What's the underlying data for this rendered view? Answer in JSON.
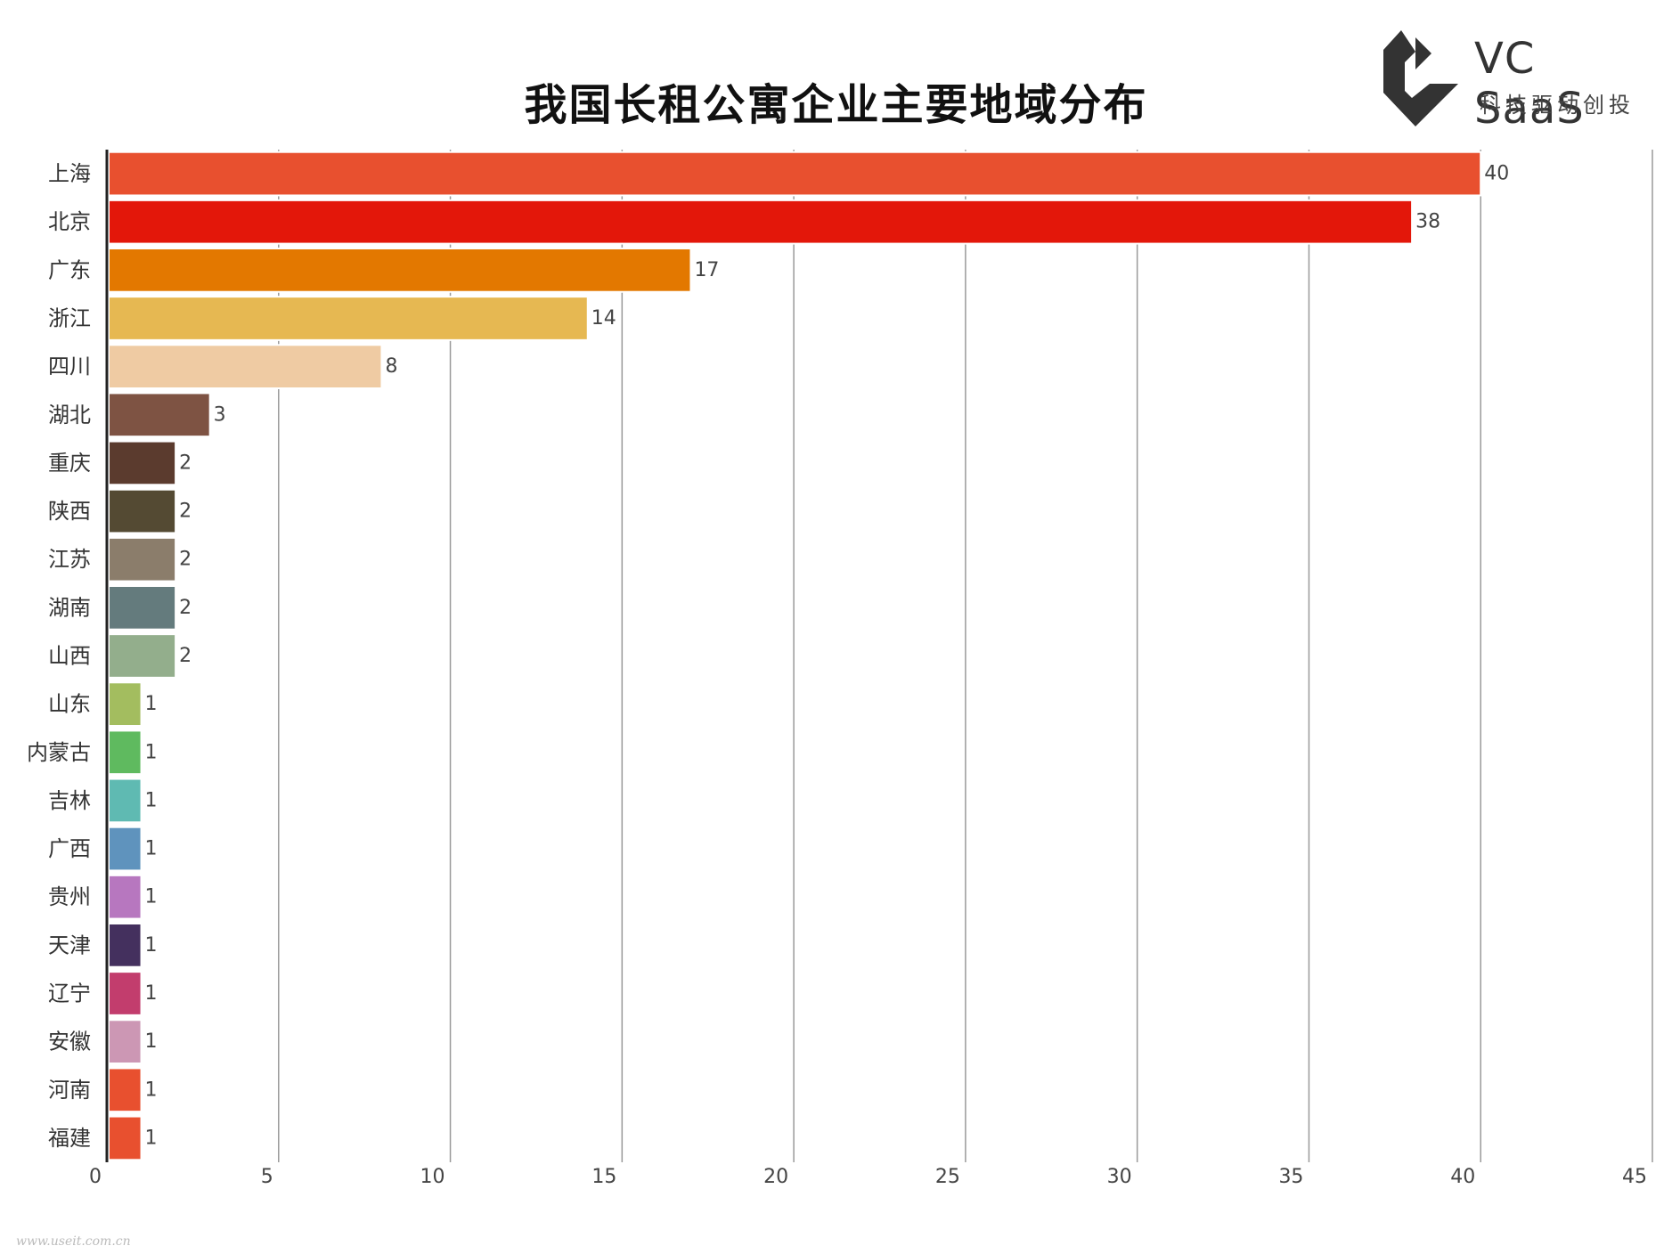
{
  "chart_data": {
    "type": "bar",
    "orientation": "horizontal",
    "title": "我国长租公寓企业主要地域分布",
    "categories": [
      "上海",
      "北京",
      "广东",
      "浙江",
      "四川",
      "湖北",
      "重庆",
      "陕西",
      "江苏",
      "湖南",
      "山西",
      "山东",
      "内蒙古",
      "吉林",
      "广西",
      "贵州",
      "天津",
      "辽宁",
      "安徽",
      "河南",
      "福建"
    ],
    "values": [
      40,
      38,
      17,
      14,
      8,
      3,
      2,
      2,
      2,
      2,
      2,
      1,
      1,
      1,
      1,
      1,
      1,
      1,
      1,
      1,
      1
    ],
    "colors": [
      "#e8502f",
      "#e3170a",
      "#e37800",
      "#e6b852",
      "#efcba3",
      "#7e5343",
      "#5b3b2e",
      "#544a33",
      "#8b7d6b",
      "#647b7d",
      "#93ae8c",
      "#a3bd5f",
      "#5fba5f",
      "#5fbab2",
      "#5f93bd",
      "#b777bf",
      "#44305e",
      "#c23d6d",
      "#cc97b4",
      "#e8502f",
      "#e8502f"
    ],
    "xlim": [
      0,
      45
    ],
    "xticks": [
      0,
      5,
      10,
      15,
      20,
      25,
      30,
      35,
      40,
      45
    ],
    "grid": true,
    "legend": "none",
    "xlabel": "",
    "ylabel": ""
  },
  "logo": {
    "name": "VC SaaS",
    "tagline": "科技驱动创投",
    "color": "#333333"
  },
  "footer": {
    "watermark": "www.useit.com.cn"
  }
}
